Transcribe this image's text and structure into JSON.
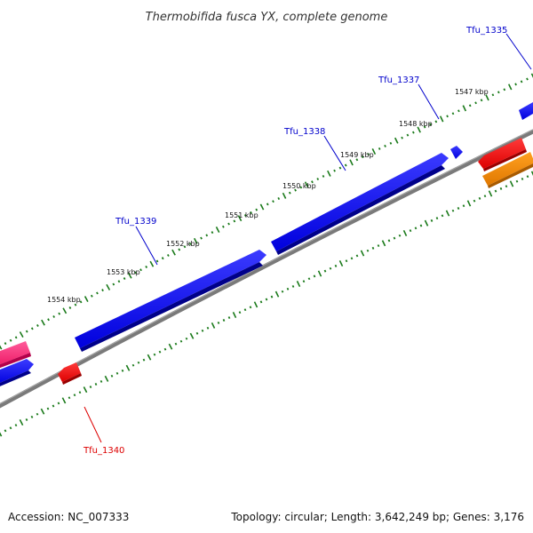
{
  "title": "Thermobifida fusca YX, complete genome",
  "footer": {
    "accession": "Accession: NC_007333",
    "summary": "Topology: circular; Length: 3,642,249 bp; Genes: 3,176"
  },
  "colors": {
    "backbone": "#808080",
    "tick": "#1a7a1a",
    "forward_gene": "#0000ee",
    "forward_label": "#0000cc",
    "reverse_gene": "#ee0000",
    "reverse_label": "#dd0000",
    "pink_gene": "#ff2d7a",
    "orange_gene": "#ff8c00"
  },
  "scale_labels": [
    "1547 kbp",
    "1548 kbp",
    "1549 kbp",
    "1550 kbp",
    "1551 kbp",
    "1552 kbp",
    "1553 kbp",
    "1554 kbp"
  ],
  "gene_labels": [
    {
      "text": "Tfu_1335",
      "strand": "forward"
    },
    {
      "text": "Tfu_1337",
      "strand": "forward"
    },
    {
      "text": "Tfu_1338",
      "strand": "forward"
    },
    {
      "text": "Tfu_1339",
      "strand": "forward"
    },
    {
      "text": "Tfu_1340",
      "strand": "reverse"
    }
  ]
}
